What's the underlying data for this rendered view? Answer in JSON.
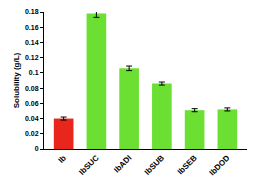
{
  "chart_data": {
    "type": "bar",
    "y_label": "Solubility (g/L)",
    "categories": [
      "Ib",
      "IbSUC",
      "IbADI",
      "IbSUB",
      "IbSEB",
      "IbDOD"
    ],
    "values": [
      0.04,
      0.178,
      0.106,
      0.086,
      0.051,
      0.052
    ],
    "errors": [
      0.002,
      0.005,
      0.003,
      0.002,
      0.002,
      0.002
    ],
    "colors": [
      "#e8261c",
      "#6be033",
      "#6be033",
      "#6be033",
      "#6be033",
      "#6be033"
    ],
    "ylim": [
      0,
      0.18
    ],
    "yticks": [
      0,
      0.02,
      0.04,
      0.06,
      0.08,
      0.1,
      0.12,
      0.14,
      0.16,
      0.18
    ],
    "grid": false
  }
}
